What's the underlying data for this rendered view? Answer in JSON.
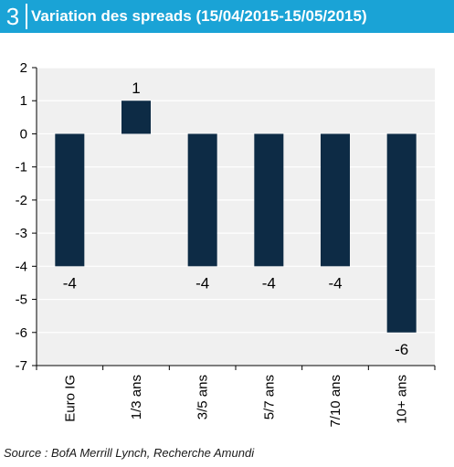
{
  "header": {
    "number": "3",
    "title": "Variation des spreads (15/04/2015-15/05/2015)"
  },
  "source": "Source : BofA Merrill Lynch, Recherche Amundi",
  "colors": {
    "header_bg": "#1aa3d6",
    "plot_bg": "#f0f0f0",
    "bar": "#0d2b45"
  },
  "chart_data": {
    "type": "bar",
    "title": "Variation des spreads (15/04/2015-15/05/2015)",
    "categories": [
      "Euro IG",
      "1/3 ans",
      "3/5 ans",
      "5/7 ans",
      "7/10 ans",
      "10+ ans"
    ],
    "values": [
      -4,
      1,
      -4,
      -4,
      -4,
      -6
    ],
    "data_labels": [
      "-4",
      "1",
      "-4",
      "-4",
      "-4",
      "-6"
    ],
    "ylim": [
      -7,
      2
    ],
    "yticks": [
      2,
      1,
      0,
      -1,
      -2,
      -3,
      -4,
      -5,
      -6,
      -7
    ],
    "grid": true,
    "legend": "none"
  }
}
